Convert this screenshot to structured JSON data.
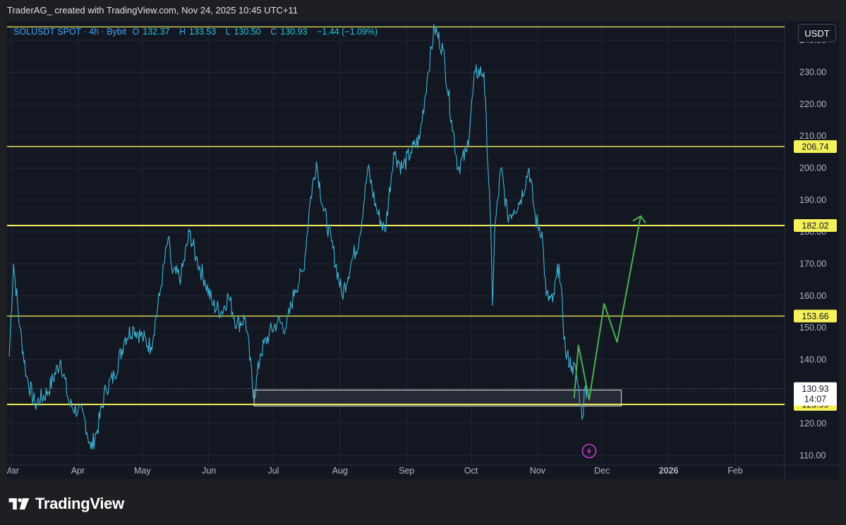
{
  "header": {
    "text": "TraderAG_ created with TradingView.com, Nov 24, 2025 10:45 UTC+11"
  },
  "legend": {
    "symbol": "SOLUSDT SPOT · 4h · Bybit",
    "open_label": "O",
    "open": "132.37",
    "high_label": "H",
    "high": "133.53",
    "low_label": "L",
    "low": "130.50",
    "close_label": "C",
    "close": "130.93",
    "change": "−1.44 (−1.09%)"
  },
  "currency_button": "USDT",
  "footer": {
    "logo_text": "TradingView",
    "logo_icon": "tradingview-logo-icon"
  },
  "colors": {
    "background": "#131722",
    "price_line": "#3db6d8",
    "level_line": "#f5f15a",
    "projection": "#4caf50",
    "zone": "#2a2e39",
    "lightning": "#c839d6"
  },
  "chart_data": {
    "type": "line",
    "title": "",
    "xlabel": "",
    "ylabel": "",
    "ylim": [
      107,
      246
    ],
    "y_ticks": [
      "110.00",
      "120.00",
      "130.00",
      "140.00",
      "150.00",
      "160.00",
      "170.00",
      "180.00",
      "190.00",
      "200.00",
      "210.00",
      "220.00",
      "230.00",
      "240.00"
    ],
    "x_ticks": [
      "Mar",
      "Apr",
      "May",
      "Jun",
      "Jul",
      "Aug",
      "Sep",
      "Oct",
      "Nov",
      "Dec",
      "2026",
      "Feb"
    ],
    "x_tick_dates": [
      "2025-03-01",
      "2025-04-01",
      "2025-05-01",
      "2025-06-01",
      "2025-07-01",
      "2025-08-01",
      "2025-09-01",
      "2025-10-01",
      "2025-11-01",
      "2025-12-01",
      "2026-01-01",
      "2026-02-01"
    ],
    "horizontal_levels": [
      {
        "value": 244.2,
        "label": ""
      },
      {
        "value": 206.74,
        "label": "206.74"
      },
      {
        "value": 182.02,
        "label": "182.02"
      },
      {
        "value": 153.66,
        "label": "153.66"
      },
      {
        "value": 125.99,
        "label": "125.99"
      }
    ],
    "last_price": {
      "value": 130.93,
      "label": "130.93",
      "countdown": "14:07"
    },
    "zone": {
      "x_start": "2025-06-22",
      "x_end": "2025-12-10",
      "y_low": 125.5,
      "y_high": 130.5
    },
    "series": [
      {
        "values": [
          {
            "x": "2025-02-28",
            "y": 141
          },
          {
            "x": "2025-03-02",
            "y": 170
          },
          {
            "x": "2025-03-05",
            "y": 150
          },
          {
            "x": "2025-03-08",
            "y": 135
          },
          {
            "x": "2025-03-12",
            "y": 126
          },
          {
            "x": "2025-03-18",
            "y": 130
          },
          {
            "x": "2025-03-24",
            "y": 140
          },
          {
            "x": "2025-03-28",
            "y": 126
          },
          {
            "x": "2025-04-01",
            "y": 124
          },
          {
            "x": "2025-04-04",
            "y": 122
          },
          {
            "x": "2025-04-07",
            "y": 112
          },
          {
            "x": "2025-04-10",
            "y": 118
          },
          {
            "x": "2025-04-14",
            "y": 131
          },
          {
            "x": "2025-04-18",
            "y": 135
          },
          {
            "x": "2025-04-23",
            "y": 147
          },
          {
            "x": "2025-04-27",
            "y": 150
          },
          {
            "x": "2025-05-01",
            "y": 147
          },
          {
            "x": "2025-05-05",
            "y": 144
          },
          {
            "x": "2025-05-09",
            "y": 160
          },
          {
            "x": "2025-05-13",
            "y": 178
          },
          {
            "x": "2025-05-15",
            "y": 167
          },
          {
            "x": "2025-05-19",
            "y": 166
          },
          {
            "x": "2025-05-23",
            "y": 180
          },
          {
            "x": "2025-05-26",
            "y": 172
          },
          {
            "x": "2025-05-30",
            "y": 165
          },
          {
            "x": "2025-06-03",
            "y": 157
          },
          {
            "x": "2025-06-07",
            "y": 155
          },
          {
            "x": "2025-06-10",
            "y": 160
          },
          {
            "x": "2025-06-14",
            "y": 151
          },
          {
            "x": "2025-06-18",
            "y": 153
          },
          {
            "x": "2025-06-22",
            "y": 128
          },
          {
            "x": "2025-06-25",
            "y": 142
          },
          {
            "x": "2025-06-29",
            "y": 148
          },
          {
            "x": "2025-07-03",
            "y": 152
          },
          {
            "x": "2025-07-07",
            "y": 150
          },
          {
            "x": "2025-07-11",
            "y": 162
          },
          {
            "x": "2025-07-15",
            "y": 168
          },
          {
            "x": "2025-07-18",
            "y": 189
          },
          {
            "x": "2025-07-21",
            "y": 202
          },
          {
            "x": "2025-07-24",
            "y": 188
          },
          {
            "x": "2025-07-28",
            "y": 177
          },
          {
            "x": "2025-08-02",
            "y": 160
          },
          {
            "x": "2025-08-06",
            "y": 170
          },
          {
            "x": "2025-08-10",
            "y": 178
          },
          {
            "x": "2025-08-14",
            "y": 200
          },
          {
            "x": "2025-08-18",
            "y": 187
          },
          {
            "x": "2025-08-22",
            "y": 180
          },
          {
            "x": "2025-08-26",
            "y": 205
          },
          {
            "x": "2025-08-30",
            "y": 200
          },
          {
            "x": "2025-09-03",
            "y": 205
          },
          {
            "x": "2025-09-07",
            "y": 209
          },
          {
            "x": "2025-09-11",
            "y": 230
          },
          {
            "x": "2025-09-14",
            "y": 244
          },
          {
            "x": "2025-09-18",
            "y": 237
          },
          {
            "x": "2025-09-22",
            "y": 215
          },
          {
            "x": "2025-09-25",
            "y": 200
          },
          {
            "x": "2025-09-29",
            "y": 205
          },
          {
            "x": "2025-10-03",
            "y": 230
          },
          {
            "x": "2025-10-07",
            "y": 230
          },
          {
            "x": "2025-10-10",
            "y": 185
          },
          {
            "x": "2025-10-11",
            "y": 157
          },
          {
            "x": "2025-10-12",
            "y": 180
          },
          {
            "x": "2025-10-15",
            "y": 200
          },
          {
            "x": "2025-10-18",
            "y": 185
          },
          {
            "x": "2025-10-21",
            "y": 187
          },
          {
            "x": "2025-10-24",
            "y": 190
          },
          {
            "x": "2025-10-28",
            "y": 200
          },
          {
            "x": "2025-10-31",
            "y": 184
          },
          {
            "x": "2025-11-03",
            "y": 180
          },
          {
            "x": "2025-11-05",
            "y": 160
          },
          {
            "x": "2025-11-08",
            "y": 158
          },
          {
            "x": "2025-11-11",
            "y": 170
          },
          {
            "x": "2025-11-14",
            "y": 142
          },
          {
            "x": "2025-11-17",
            "y": 138
          },
          {
            "x": "2025-11-19",
            "y": 136
          },
          {
            "x": "2025-11-21",
            "y": 126
          },
          {
            "x": "2025-11-22",
            "y": 122
          },
          {
            "x": "2025-11-23",
            "y": 131
          },
          {
            "x": "2025-11-24",
            "y": 130.93
          }
        ]
      },
      {
        "values": [
          {
            "x": "2025-11-18",
            "y": 128
          },
          {
            "x": "2025-11-20",
            "y": 144.5
          },
          {
            "x": "2025-11-25",
            "y": 127.5
          },
          {
            "x": "2025-12-02",
            "y": 157.5
          },
          {
            "x": "2025-12-08",
            "y": 145.5
          },
          {
            "x": "2025-12-19",
            "y": 185
          }
        ]
      }
    ]
  }
}
